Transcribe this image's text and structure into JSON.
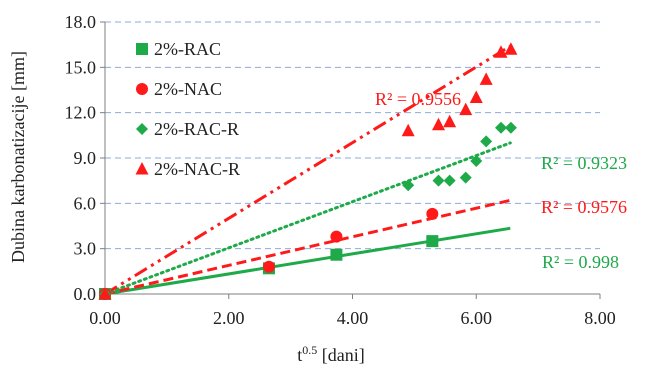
{
  "chart_data": {
    "type": "scatter",
    "xlabel": {
      "base": "t",
      "sup": "0.5",
      "rest": " [dani]"
    },
    "ylabel": "Dubina karbonatizacije [mm]",
    "xlim": [
      0,
      8
    ],
    "ylim": [
      0,
      18
    ],
    "x_ticks": [
      0,
      2,
      4,
      6,
      8
    ],
    "y_ticks": [
      0,
      3,
      6,
      9,
      12,
      15,
      18
    ],
    "x_tick_labels": [
      "0.00",
      "2.00",
      "4.00",
      "6.00",
      "8.00"
    ],
    "y_tick_labels": [
      "0.0",
      "3.0",
      "6.0",
      "9.0",
      "12.0",
      "15.0",
      "18.0"
    ],
    "grid": "horizontal dashed",
    "legend_position": "left",
    "series": [
      {
        "name": "2%-RAC",
        "marker": "square",
        "color": "#1faa4a",
        "trend_style": "solid",
        "r2": "R² = 0.998",
        "x": [
          0,
          2.65,
          3.74,
          5.29
        ],
        "y": [
          0,
          1.7,
          2.6,
          3.5
        ],
        "trend_end": [
          6.55,
          4.35
        ]
      },
      {
        "name": "2%-NAC",
        "marker": "circle",
        "color": "#ff1a1a",
        "trend_style": "dashed",
        "r2": "R² = 0.9576",
        "x": [
          0,
          2.65,
          3.74,
          5.29
        ],
        "y": [
          0,
          1.8,
          3.8,
          5.3
        ],
        "trend_end": [
          6.55,
          6.2
        ]
      },
      {
        "name": "2%-RAC-R",
        "marker": "diamond",
        "color": "#1faa4a",
        "trend_style": "dotted",
        "r2": "R² = 0.9323",
        "x": [
          0,
          4.9,
          5.39,
          5.57,
          5.83,
          6.0,
          6.16,
          6.4,
          6.56
        ],
        "y": [
          0,
          7.2,
          7.5,
          7.5,
          7.7,
          8.8,
          10.1,
          11.0,
          11.0
        ],
        "trend_end": [
          6.55,
          10.0
        ]
      },
      {
        "name": "2%-NAC-R",
        "marker": "triangle",
        "color": "#ff1a1a",
        "trend_style": "dashdotdot",
        "r2": "R² = 0.9556",
        "x": [
          0,
          4.9,
          5.39,
          5.57,
          5.83,
          6.0,
          6.16,
          6.4,
          6.56
        ],
        "y": [
          0,
          10.8,
          11.2,
          11.4,
          12.2,
          13.0,
          14.2,
          16.0,
          16.2
        ],
        "trend_end": [
          6.55,
          16.4
        ]
      }
    ]
  }
}
